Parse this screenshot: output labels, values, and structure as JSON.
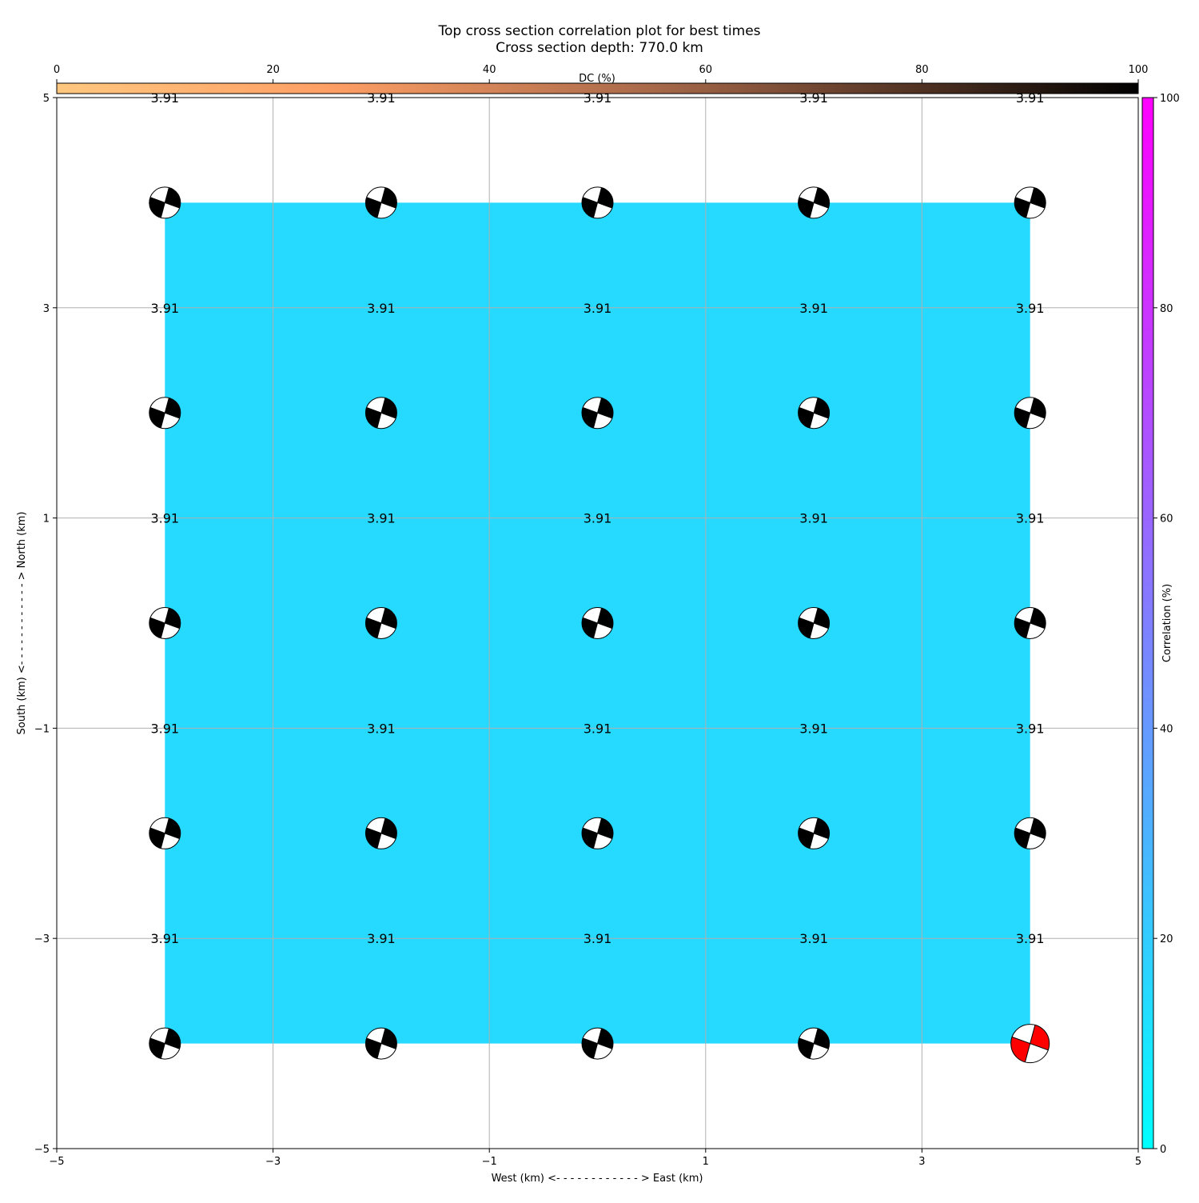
{
  "chart_data": {
    "type": "scatter",
    "title": "Top cross section correlation plot for best times",
    "subtitle": "Cross section depth: 770.0 km",
    "xlabel": "West (km) <- - - - - - - - - - - - > East (km)",
    "ylabel": "South (km) <- - - - - - - - - - - - > North (km)",
    "xlim": [
      -5,
      5
    ],
    "ylim": [
      -5,
      5
    ],
    "xticks": [
      "−5",
      "−3",
      "−1",
      "1",
      "3",
      "5"
    ],
    "yticks": [
      "−5",
      "−3",
      "−1",
      "1",
      "3",
      "5"
    ],
    "xtick_values": [
      -5,
      -3,
      -1,
      1,
      3,
      5
    ],
    "ytick_values": [
      -5,
      -3,
      -1,
      1,
      3,
      5
    ],
    "grid": true,
    "background_fill": {
      "x": [
        -4,
        4
      ],
      "y": [
        -4,
        4
      ],
      "correlation": 15,
      "color": "#26d9ff"
    },
    "points": {
      "x": [
        -4,
        -2,
        0,
        2,
        4
      ],
      "y": [
        4,
        2,
        0,
        -2,
        -4
      ],
      "label": "3.91",
      "mechanism_color": "#000000",
      "best": {
        "x": 4,
        "y": -4,
        "color": "#ff0000"
      }
    },
    "dc_colorbar": {
      "label": "DC (%)",
      "ticks": [
        "0",
        "20",
        "40",
        "60",
        "80",
        "100"
      ],
      "range": [
        0,
        100
      ],
      "colormap": "copper_r",
      "placement": "top"
    },
    "corr_colorbar": {
      "label": "Correlation (%)",
      "ticks": [
        "0",
        "20",
        "40",
        "60",
        "80",
        "100"
      ],
      "range": [
        0,
        100
      ],
      "colormap": "cool",
      "placement": "right"
    }
  }
}
